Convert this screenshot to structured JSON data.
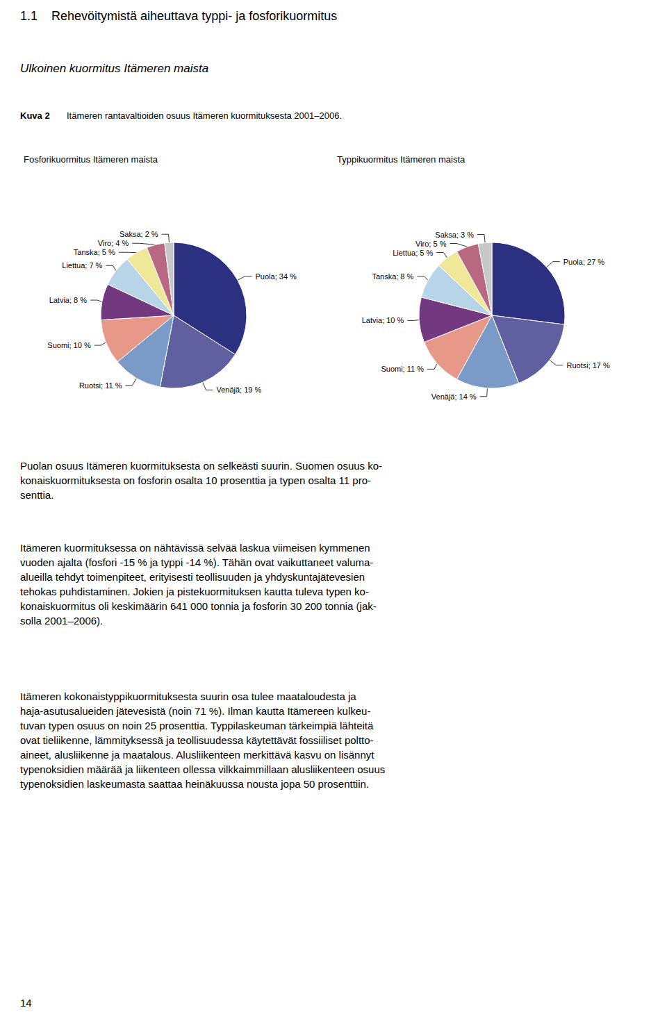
{
  "title": "1.1    Rehevöitymistä aiheuttava typpi- ja fosforikuormitus",
  "subtitle": "Ulkoinen kuormitus Itämeren maista",
  "annotations": [
    "Kuva 2",
    "Itämeren rantavaltioiden osuus Itämeren kuormituksesta 2001–2006.",
    "Puolan osuus Itämeren kuormituksesta on selkeästi suurin. Suomen osuus ko-\nkonaiskuormituksesta on fosforin osalta 10 prosenttia ja typen osalta 11 pro-\nsenttia.",
    "Itämeren kuormituksessa on nähtävissä selvää laskua viimeisen kymmenen\nvuoden ajalta (fosfori -15 % ja typpi -14 %). Tähän ovat vaikuttaneet valuma-\nalueilla tehdyt toimenpiteet, erityisesti teollisuuden ja yhdyskuntajätevesien\ntehokas puhdistaminen. Jokien ja pistekuormituksen kautta tuleva typen ko-\nkonaiskuormitus oli keskimäärin 641 000 tonnia ja fosforin 30 200 tonnia (jak-\nsolla 2001–2006).",
    "Itämeren kokonaistyppikuormituksesta suurin osa tulee maataloudesta ja\nhaja-asutusalueiden jätevesistä (noin 71 %). Ilman kautta Itämereen kulkeu-\ntuvan typen osuus on noin 25 prosenttia. Typpilaskeuman tärkeimpiä lähteitä\novat tieliikenne, lämmityksessä ja teollisuudessa käytettävät fossiiliset poltto-\naineet, alusliikenne ja maatalous. Alusliikenteen merkittävä kasvu on lisännyt\ntypenoksidien määrää ja liikenteen ollessa vilkkaimmillaan alusliikenteen osuus\ntypenoksidien laskeumasta saattaa heinäkuussa nousta jopa 50 prosenttiin.",
    "14"
  ],
  "chart_data": [
    {
      "type": "pie",
      "title": "Fosforikuormitus Itämeren maista",
      "categories": [
        "Puola",
        "Venäjä",
        "Ruotsi",
        "Suomi",
        "Latvia",
        "Liettua",
        "Tanska",
        "Viro",
        "Saksa"
      ],
      "values": [
        34,
        19,
        11,
        10,
        8,
        7,
        5,
        4,
        2
      ],
      "value_labels": [
        "Puola; 34 %",
        "Venäjä; 19 %",
        "Ruotsi; 11 %",
        "Suomi; 10 %",
        "Latvia; 8 %",
        "Liettua; 7 %",
        "Tanska; 5 %",
        "Viro; 4 %",
        "Saksa; 2 %"
      ],
      "colors": [
        "#2B3080",
        "#6060A0",
        "#7A9AC8",
        "#E89888",
        "#723880",
        "#B8D4E8",
        "#EEE898",
        "#B86880",
        "#C8C8C8"
      ],
      "data_labels": true
    },
    {
      "type": "pie",
      "title": "Typpikuormitus Itämeren maista",
      "categories": [
        "Puola",
        "Ruotsi",
        "Venäjä",
        "Suomi",
        "Latvia",
        "Tanska",
        "Liettua",
        "Viro",
        "Saksa"
      ],
      "values": [
        27,
        17,
        14,
        11,
        10,
        8,
        5,
        5,
        3
      ],
      "value_labels": [
        "Puola; 27 %",
        "Ruotsi; 17 %",
        "Venäjä; 14 %",
        "Suomi; 11 %",
        "Latvia; 10 %",
        "Tanska; 8 %",
        "Liettua; 5 %",
        "Viro; 5 %",
        "Saksa; 3 %"
      ],
      "colors": [
        "#2B3080",
        "#6060A0",
        "#7A9AC8",
        "#E89888",
        "#723880",
        "#B8D4E8",
        "#EEE898",
        "#B86880",
        "#C8C8C8"
      ],
      "data_labels": true
    }
  ]
}
